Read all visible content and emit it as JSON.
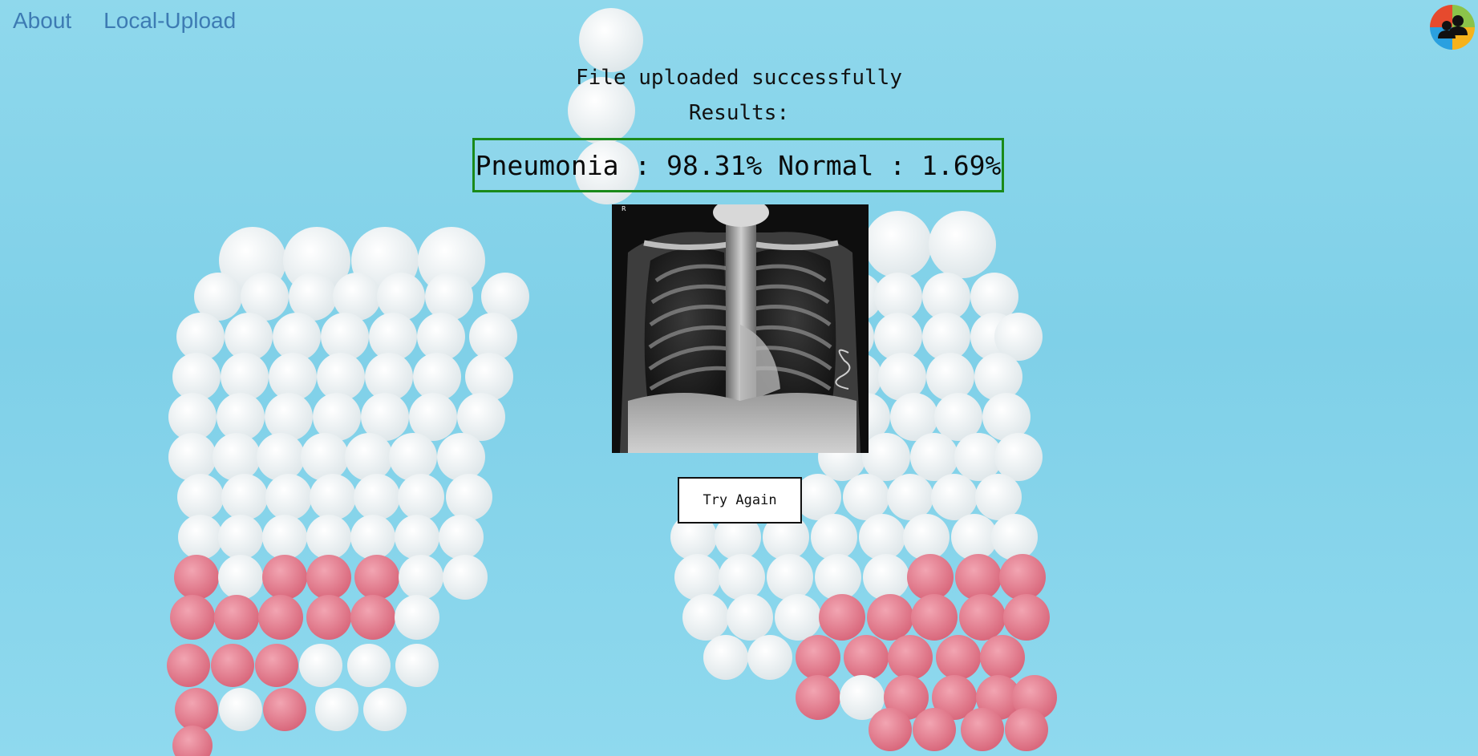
{
  "nav": {
    "about_label": "About",
    "upload_label": "Local-Upload"
  },
  "status_message": "File uploaded successfully",
  "results_label": "Results:",
  "prediction_text": "Pneumonia : 98.31% Normal : 1.69%",
  "predictions": [
    {
      "label": "Pneumonia",
      "percent": 98.31
    },
    {
      "label": "Normal",
      "percent": 1.69
    }
  ],
  "xray_marker": "R",
  "try_again_label": "Try Again",
  "colors": {
    "background": "#85d4ea",
    "nav_link": "#3d7bb3",
    "result_border": "#1a8a1a",
    "pill_white": "#fafafa",
    "pill_pink": "#e88a9a"
  },
  "icons": {
    "logo": "users-group-icon"
  }
}
